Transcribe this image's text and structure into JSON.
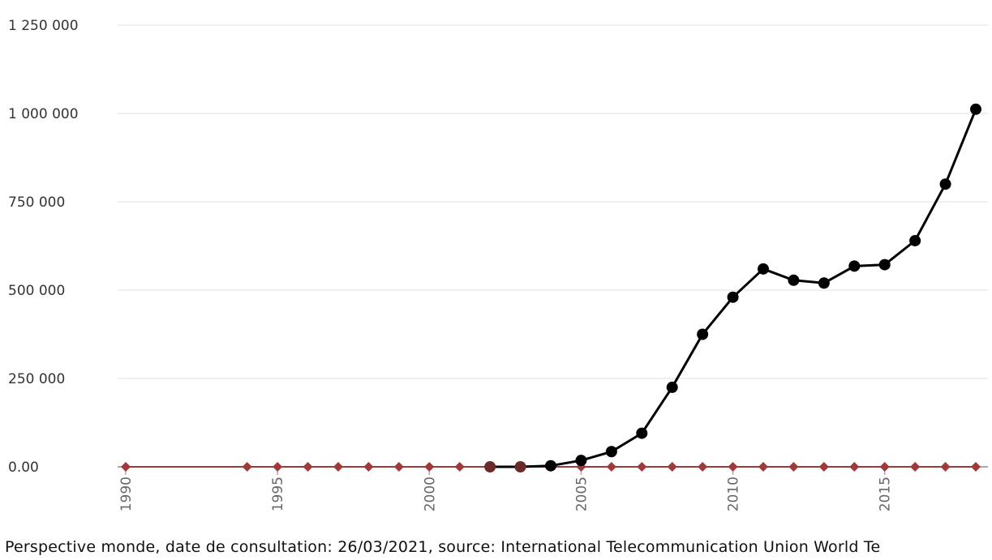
{
  "chart_data": {
    "type": "line",
    "xlim": [
      1990,
      2018
    ],
    "ylim": [
      0,
      1250000
    ],
    "grid": true,
    "y_ticks": [
      {
        "value": 0,
        "label": "0.00"
      },
      {
        "value": 250000,
        "label": "250 000"
      },
      {
        "value": 500000,
        "label": "500 000"
      },
      {
        "value": 750000,
        "label": "750 000"
      },
      {
        "value": 1000000,
        "label": "1 000 000"
      },
      {
        "value": 1250000,
        "label": "1 250 000"
      }
    ],
    "x_ticks": [
      {
        "value": 1990,
        "label": "1990"
      },
      {
        "value": 1995,
        "label": "1995"
      },
      {
        "value": 2000,
        "label": "2000"
      },
      {
        "value": 2005,
        "label": "2005"
      },
      {
        "value": 2010,
        "label": "2010"
      },
      {
        "value": 2015,
        "label": "2015"
      }
    ],
    "series": [
      {
        "color": "#000000",
        "marker": "circle",
        "x": [
          2002,
          2003,
          2004,
          2005,
          2006,
          2007,
          2008,
          2009,
          2010,
          2011,
          2012,
          2013,
          2014,
          2015,
          2016,
          2017,
          2018
        ],
        "values": [
          0,
          0,
          3000,
          18000,
          43000,
          95000,
          225000,
          375000,
          480000,
          560000,
          528000,
          520000,
          568000,
          572000,
          640000,
          800000,
          1012000
        ]
      },
      {
        "color": "#a03a3a",
        "marker": "diamond",
        "x": [
          1990,
          1994,
          1995,
          1996,
          1997,
          1998,
          1999,
          2000,
          2001,
          2002,
          2003,
          2004,
          2005,
          2006,
          2007,
          2008,
          2009,
          2010,
          2011,
          2012,
          2013,
          2014,
          2015,
          2016,
          2017,
          2018
        ],
        "values": [
          0,
          0,
          0,
          0,
          0,
          0,
          0,
          0,
          0,
          0,
          0,
          0,
          0,
          0,
          0,
          0,
          0,
          0,
          0,
          0,
          0,
          0,
          0,
          0,
          0,
          0
        ]
      }
    ]
  },
  "source_note": "Perspective monde, date de consultation: 26/03/2021, source: International Telecommunication Union World Te"
}
